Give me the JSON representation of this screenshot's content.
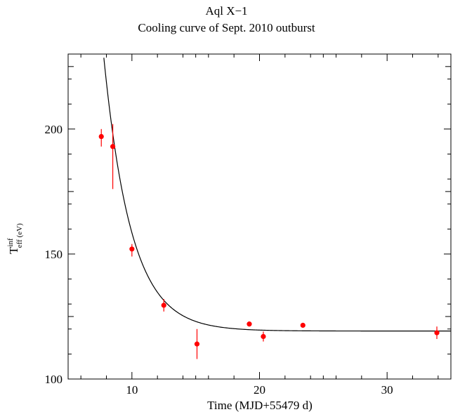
{
  "chart_data": {
    "type": "scatter",
    "title": "Aql X−1",
    "subtitle": "Cooling curve of Sept. 2010 outburst",
    "xlabel": "Time (MJD+55479 d)",
    "ylabel": {
      "main": "T",
      "sup": "inf",
      "sub": "eff",
      "unit": "(eV)"
    },
    "xlim": [
      5,
      35
    ],
    "ylim": [
      100,
      230
    ],
    "x_ticks": [
      10,
      20,
      30
    ],
    "y_ticks": [
      100,
      150,
      200
    ],
    "grid": false,
    "series": [
      {
        "kind": "points",
        "color": "#ff0000",
        "points": [
          {
            "x": 7.6,
            "y": 197,
            "yerr": [
              193,
              200
            ]
          },
          {
            "x": 8.5,
            "y": 193,
            "yerr": [
              176,
              202
            ]
          },
          {
            "x": 10.0,
            "y": 152,
            "yerr": [
              149,
              154
            ]
          },
          {
            "x": 12.5,
            "y": 129.5,
            "yerr": [
              127,
              132
            ]
          },
          {
            "x": 15.1,
            "y": 114,
            "yerr": [
              108,
              120
            ]
          },
          {
            "x": 19.2,
            "y": 122,
            "yerr": [
              121,
              123
            ]
          },
          {
            "x": 20.3,
            "y": 117,
            "yerr": [
              115,
              119
            ]
          },
          {
            "x": 23.4,
            "y": 121.5,
            "yerr": [
              120.5,
              122.5
            ]
          },
          {
            "x": 33.9,
            "y": 118.5,
            "yerr": [
              116,
              121
            ]
          }
        ]
      },
      {
        "kind": "fit-curve",
        "color": "#000000",
        "model": {
          "base": 119.2,
          "amplitude": 99.6,
          "tau": 2.15,
          "t_ref": 8.0
        }
      }
    ]
  }
}
